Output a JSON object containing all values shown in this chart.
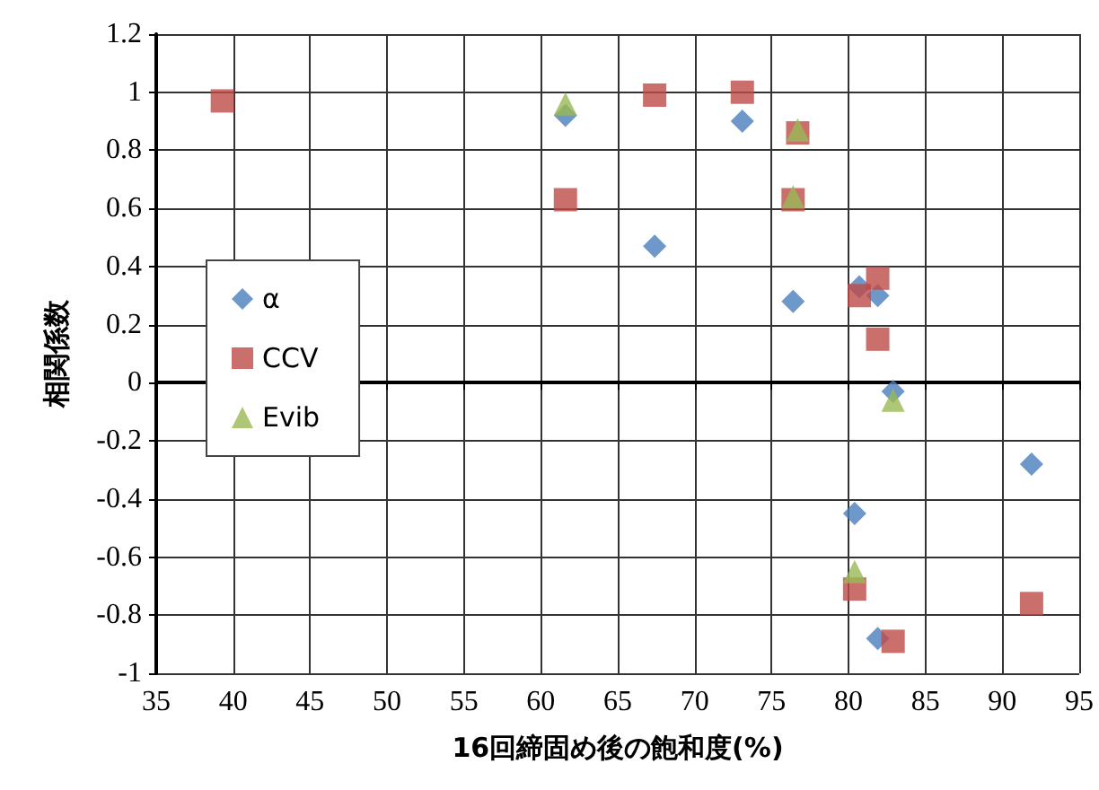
{
  "chart_data": {
    "type": "scatter",
    "xlabel": "16回締固め後の飽和度(%)",
    "ylabel": "相関係数",
    "xlim": [
      35,
      95
    ],
    "xticks": [
      35,
      40,
      45,
      50,
      55,
      60,
      65,
      70,
      75,
      80,
      85,
      90,
      95
    ],
    "ylim": [
      -1,
      1.2
    ],
    "yticks": [
      -1,
      -0.8,
      -0.6,
      -0.4,
      -0.2,
      0,
      0.2,
      0.4,
      0.6,
      0.8,
      1,
      1.2
    ],
    "grid": true,
    "legend": "left",
    "series": [
      {
        "name": "α",
        "color": "#4a7ebb",
        "marker": "diamond",
        "x": [
          61.6,
          67.4,
          73.1,
          76.4,
          80.7,
          81.9,
          82.9,
          91.9,
          80.4,
          81.9
        ],
        "values": [
          0.92,
          0.47,
          0.9,
          0.28,
          0.33,
          0.3,
          -0.03,
          -0.28,
          -0.45,
          -0.88
        ]
      },
      {
        "name": "CCV",
        "color": "#be4b48",
        "marker": "square",
        "x": [
          39.3,
          61.6,
          67.4,
          73.1,
          76.7,
          76.4,
          80.7,
          81.9,
          81.9,
          80.4,
          91.9,
          82.9
        ],
        "values": [
          0.97,
          0.63,
          0.99,
          1.0,
          0.86,
          0.63,
          0.3,
          0.36,
          0.15,
          -0.71,
          -0.76,
          -0.89
        ]
      },
      {
        "name": "Evib",
        "color": "#98b954",
        "marker": "triangle",
        "x": [
          61.6,
          76.7,
          76.4,
          82.9,
          80.4
        ],
        "values": [
          0.96,
          0.87,
          0.64,
          -0.06,
          -0.65
        ]
      }
    ]
  }
}
